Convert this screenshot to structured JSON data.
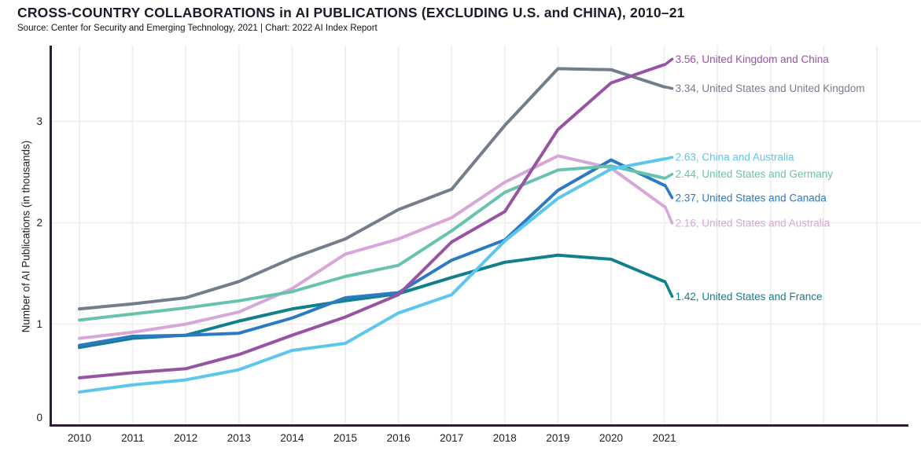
{
  "header": {
    "title": "CROSS-COUNTRY COLLABORATIONS in AI PUBLICATIONS (EXCLUDING U.S. and CHINA), 2010–21",
    "source": "Source: Center for Security and Emerging Technology, 2021 | Chart: 2022 AI Index Report"
  },
  "chart_data": {
    "type": "line",
    "title": "CROSS-COUNTRY COLLABORATIONS in AI PUBLICATIONS (EXCLUDING U.S. and CHINA), 2010–21",
    "xlabel": "",
    "ylabel": "Number of AI Publications (in thousands)",
    "categories": [
      "2010",
      "2011",
      "2012",
      "2013",
      "2014",
      "2015",
      "2016",
      "2017",
      "2018",
      "2019",
      "2020",
      "2021"
    ],
    "yticks": [
      "0",
      "1",
      "2",
      "3"
    ],
    "ylim": [
      0,
      3.75
    ],
    "grid": true,
    "legend_position": "end-of-line labels at right",
    "series": [
      {
        "name": "United Kingdom and China",
        "end_label": "3.56, United Kingdom and China",
        "end_value": 3.56,
        "color": "#9853a4",
        "values": [
          0.47,
          0.52,
          0.56,
          0.7,
          0.89,
          1.07,
          1.29,
          1.81,
          2.11,
          2.92,
          3.38,
          3.56
        ]
      },
      {
        "name": "United States and United Kingdom",
        "end_label": "3.34, United States and United Kingdom",
        "end_value": 3.34,
        "color": "#747d8c",
        "values": [
          1.15,
          1.2,
          1.26,
          1.42,
          1.65,
          1.84,
          2.13,
          2.33,
          2.96,
          3.52,
          3.51,
          3.34
        ]
      },
      {
        "name": "China and Australia",
        "end_label": "2.63, China and Australia",
        "end_value": 2.63,
        "color": "#5cc6ec",
        "values": [
          0.33,
          0.4,
          0.45,
          0.55,
          0.74,
          0.81,
          1.11,
          1.29,
          1.82,
          2.24,
          2.53,
          2.63
        ]
      },
      {
        "name": "United States and Germany",
        "end_label": "2.44, United States and Germany",
        "end_value": 2.44,
        "color": "#66c3ae",
        "values": [
          1.04,
          1.1,
          1.16,
          1.23,
          1.32,
          1.47,
          1.58,
          1.92,
          2.3,
          2.52,
          2.56,
          2.44
        ]
      },
      {
        "name": "United States and Canada",
        "end_label": "2.37, United States and Canada",
        "end_value": 2.37,
        "color": "#2d7ac4",
        "values": [
          0.79,
          0.88,
          0.89,
          0.91,
          1.06,
          1.26,
          1.31,
          1.63,
          1.83,
          2.32,
          2.62,
          2.37
        ]
      },
      {
        "name": "United States and Australia",
        "end_label": "2.16, United States and Australia",
        "end_value": 2.16,
        "color": "#d6a7d8",
        "values": [
          0.86,
          0.92,
          1.0,
          1.12,
          1.35,
          1.69,
          1.84,
          2.05,
          2.4,
          2.66,
          2.54,
          2.16
        ]
      },
      {
        "name": "United States and France",
        "end_label": "1.42, United States and France",
        "end_value": 1.42,
        "color": "#12808c",
        "values": [
          0.77,
          0.86,
          0.89,
          1.03,
          1.15,
          1.23,
          1.3,
          1.46,
          1.61,
          1.68,
          1.64,
          1.42
        ]
      }
    ]
  },
  "colors": {
    "axis": "#2a1e36",
    "grid": "#f0f0f0",
    "tick_text": "#20202c"
  }
}
